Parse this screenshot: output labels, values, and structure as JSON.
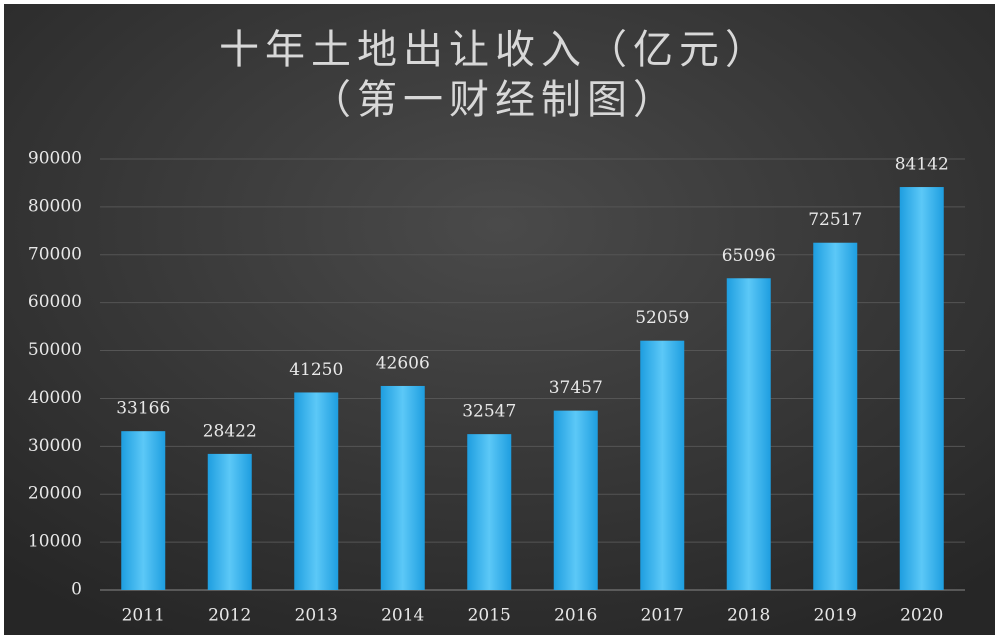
{
  "chart_data": {
    "type": "bar",
    "title": "十年土地出让收入（亿元）",
    "subtitle": "（第一财经制图）",
    "categories": [
      "2011",
      "2012",
      "2013",
      "2014",
      "2015",
      "2016",
      "2017",
      "2018",
      "2019",
      "2020"
    ],
    "values": [
      33166,
      28422,
      41250,
      42606,
      32547,
      37457,
      52059,
      65096,
      72517,
      84142
    ],
    "color": "#3ab4ee",
    "ylim": [
      0,
      90000
    ],
    "yticks": [
      0,
      10000,
      20000,
      30000,
      40000,
      50000,
      60000,
      70000,
      80000,
      90000
    ],
    "grid": true
  }
}
